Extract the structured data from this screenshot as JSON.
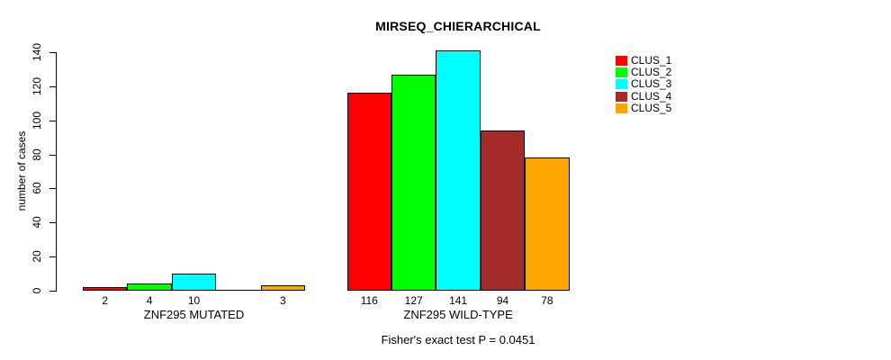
{
  "chart_data": {
    "type": "bar",
    "title": "MIRSEQ_CHIERARCHICAL",
    "ylabel": "number of cases",
    "xlabel": "",
    "footer": "Fisher's exact test P = 0.0451",
    "ylim": [
      0,
      140
    ],
    "yticks": [
      0,
      20,
      40,
      60,
      80,
      100,
      120,
      140
    ],
    "grid": false,
    "legend_position": "top-right",
    "bar_border_color": "#000000",
    "axis_color": "#000000",
    "background_color": "#ffffff",
    "categories": [
      "ZNF295 MUTATED",
      "ZNF295 WILD-TYPE"
    ],
    "series": [
      {
        "name": "CLUS_1",
        "color": "#FF0000",
        "values": [
          2,
          116
        ]
      },
      {
        "name": "CLUS_2",
        "color": "#00FF00",
        "values": [
          4,
          127
        ]
      },
      {
        "name": "CLUS_3",
        "color": "#00FFFF",
        "values": [
          10,
          141
        ]
      },
      {
        "name": "CLUS_4",
        "color": "#A52A2A",
        "values": [
          0,
          94
        ]
      },
      {
        "name": "CLUS_5",
        "color": "#FFA500",
        "values": [
          3,
          78
        ]
      }
    ],
    "value_labels": {
      "ZNF295 MUTATED": [
        "2",
        "4",
        "10",
        "",
        "3"
      ],
      "ZNF295 WILD-TYPE": [
        "116",
        "127",
        "141",
        "94",
        "78"
      ]
    }
  }
}
